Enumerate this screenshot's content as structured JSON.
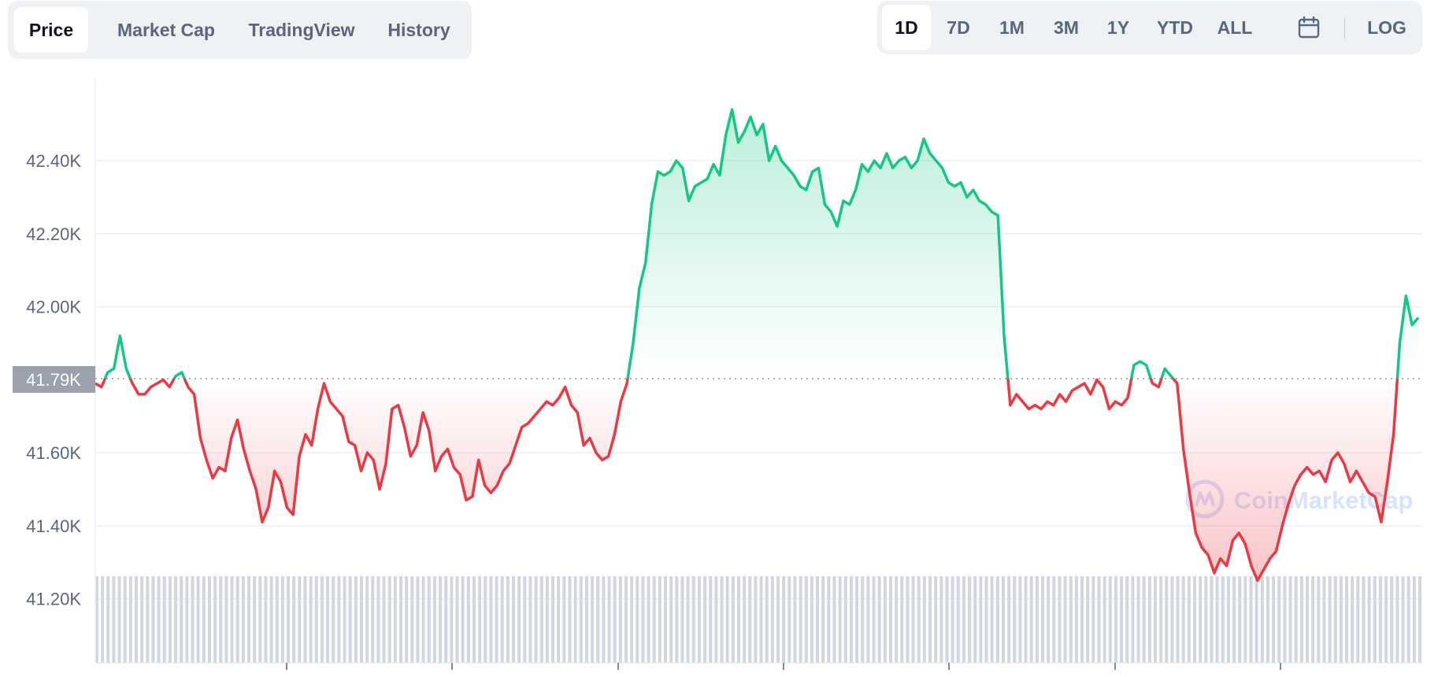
{
  "view_tabs": [
    {
      "label": "Price",
      "active": true
    },
    {
      "label": "Market Cap",
      "active": false
    },
    {
      "label": "TradingView",
      "active": false
    },
    {
      "label": "History",
      "active": false
    }
  ],
  "range_tabs": [
    {
      "label": "1D",
      "active": true
    },
    {
      "label": "7D",
      "active": false
    },
    {
      "label": "1M",
      "active": false
    },
    {
      "label": "3M",
      "active": false
    },
    {
      "label": "1Y",
      "active": false
    },
    {
      "label": "YTD",
      "active": false
    },
    {
      "label": "ALL",
      "active": false
    }
  ],
  "calendar_icon": "calendar-icon",
  "log_label": "LOG",
  "watermark": "CoinMarketCap",
  "colors": {
    "up": "#16c784",
    "down": "#ea3943",
    "grid": "#eceff3",
    "volume": "#cfd6e4",
    "reference_badge": "#9ba2ad"
  },
  "chart_data": {
    "type": "area",
    "title": "",
    "xlabel": "",
    "ylabel": "",
    "ylim": [
      41.0,
      42.6
    ],
    "y_ticks": [
      "42.40K",
      "42.20K",
      "42.00K",
      "41.60K",
      "41.40K",
      "41.20K"
    ],
    "y_tick_values": [
      42.4,
      42.2,
      42.0,
      41.6,
      41.4,
      41.2
    ],
    "reference_label": "41.79K",
    "reference_value": 41.79,
    "grid": true,
    "series": [
      {
        "values": [
          41.79,
          41.78,
          41.82,
          41.83,
          41.92,
          41.83,
          41.79,
          41.76,
          41.76,
          41.78,
          41.79,
          41.8,
          41.78,
          41.81,
          41.82,
          41.78,
          41.76,
          41.64,
          41.58,
          41.53,
          41.56,
          41.55,
          41.64,
          41.69,
          41.61,
          41.55,
          41.5,
          41.41,
          41.45,
          41.55,
          41.52,
          41.45,
          41.43,
          41.59,
          41.65,
          41.62,
          41.72,
          41.79,
          41.74,
          41.72,
          41.7,
          41.63,
          41.62,
          41.55,
          41.6,
          41.58,
          41.5,
          41.57,
          41.72,
          41.73,
          41.67,
          41.59,
          41.62,
          41.71,
          41.66,
          41.55,
          41.59,
          41.61,
          41.56,
          41.54,
          41.47,
          41.48,
          41.58,
          41.51,
          41.49,
          41.51,
          41.55,
          41.57,
          41.62,
          41.67,
          41.68,
          41.7,
          41.72,
          41.74,
          41.73,
          41.75,
          41.78,
          41.73,
          41.71,
          41.62,
          41.64,
          41.6,
          41.58,
          41.59,
          41.65,
          41.74,
          41.79,
          41.9,
          42.05,
          42.12,
          42.28,
          42.37,
          42.36,
          42.37,
          42.4,
          42.38,
          42.29,
          42.33,
          42.34,
          42.35,
          42.39,
          42.36,
          42.47,
          42.54,
          42.45,
          42.48,
          42.52,
          42.47,
          42.5,
          42.4,
          42.44,
          42.4,
          42.38,
          42.36,
          42.33,
          42.32,
          42.37,
          42.38,
          42.28,
          42.26,
          42.22,
          42.29,
          42.28,
          42.32,
          42.39,
          42.37,
          42.4,
          42.38,
          42.42,
          42.38,
          42.4,
          42.41,
          42.38,
          42.4,
          42.46,
          42.42,
          42.4,
          42.38,
          42.34,
          42.33,
          42.34,
          42.3,
          42.32,
          42.29,
          42.28,
          42.26,
          42.25,
          41.92,
          41.73,
          41.76,
          41.74,
          41.72,
          41.73,
          41.72,
          41.74,
          41.73,
          41.76,
          41.74,
          41.77,
          41.78,
          41.79,
          41.76,
          41.8,
          41.78,
          41.72,
          41.74,
          41.73,
          41.75,
          41.84,
          41.85,
          41.84,
          41.79,
          41.78,
          41.83,
          41.81,
          41.79,
          41.61,
          41.49,
          41.38,
          41.34,
          41.32,
          41.27,
          41.31,
          41.29,
          41.36,
          41.38,
          41.35,
          41.29,
          41.25,
          41.28,
          41.31,
          41.33,
          41.4,
          41.46,
          41.51,
          41.54,
          41.56,
          41.54,
          41.55,
          41.52,
          41.58,
          41.6,
          41.57,
          41.52,
          41.55,
          41.52,
          41.49,
          41.48,
          41.41,
          41.52,
          41.65,
          41.9,
          42.03,
          41.95,
          41.97
        ]
      }
    ],
    "volume": [
      0.5,
      0.5,
      0.5,
      0.5,
      0.5,
      0.5,
      0.5,
      0.5,
      0.5,
      0.5,
      0.5,
      0.5,
      0.5,
      0.5,
      0.5,
      0.5,
      0.5,
      0.5,
      0.5,
      0.5,
      0.5,
      0.5,
      0.5,
      0.5,
      0.5,
      0.5,
      0.5,
      0.5,
      0.5,
      0.5,
      0.5,
      0.5,
      0.5,
      0.5,
      0.5,
      0.5,
      0.5,
      0.5,
      0.5,
      0.5,
      0.5,
      0.5,
      0.5,
      0.5,
      0.5,
      0.5,
      0.5,
      0.5,
      0.5,
      0.5,
      0.5,
      0.5,
      0.5,
      0.5,
      0.5,
      0.5,
      0.5,
      0.5,
      0.5,
      0.5,
      0.5,
      0.5,
      0.5,
      0.5,
      0.5,
      0.5,
      0.5,
      0.5,
      0.5,
      0.5,
      0.5,
      0.5,
      0.5,
      0.5,
      0.5,
      0.5,
      0.5,
      0.5,
      0.5,
      0.5,
      0.5,
      0.5,
      0.5,
      0.5,
      0.5,
      0.5,
      0.5,
      0.5,
      0.5,
      0.5,
      0.5,
      0.5,
      0.5,
      0.5,
      0.5,
      0.5,
      0.5,
      0.5,
      0.5,
      0.5,
      0.5,
      0.5,
      0.5,
      0.5,
      0.5,
      0.5,
      0.5,
      0.5,
      0.5,
      0.5,
      0.5,
      0.5,
      0.5,
      0.5,
      0.5,
      0.5,
      0.5,
      0.5,
      0.5,
      0.5,
      0.5,
      0.5,
      0.5,
      0.5,
      0.5,
      0.5,
      0.5,
      0.5,
      0.5,
      0.5,
      0.5,
      0.5,
      0.5,
      0.5,
      0.5,
      0.5,
      0.5,
      0.5,
      0.5,
      0.5,
      0.5,
      0.5,
      0.5,
      0.5,
      0.5,
      0.5,
      0.5,
      0.5,
      0.5,
      0.5,
      0.5,
      0.5,
      0.5,
      0.5,
      0.5,
      0.5,
      0.5,
      0.5,
      0.5,
      0.5,
      0.5,
      0.5,
      0.5,
      0.5,
      0.5,
      0.5,
      0.5,
      0.5,
      0.5,
      0.5,
      0.5,
      0.5,
      0.5,
      0.5,
      0.5,
      0.5,
      0.5,
      0.5,
      0.5,
      0.5,
      0.5,
      0.5,
      0.5,
      0.5,
      0.5,
      0.5,
      0.5,
      0.5,
      0.5,
      0.5,
      0.5,
      0.5,
      0.5,
      0.5,
      0.5,
      0.5,
      0.5,
      0.5,
      0.5,
      0.5,
      0.5,
      0.5,
      0.5,
      0.5,
      0.5,
      0.5,
      0.5,
      0.5,
      0.5,
      0.5,
      0.5,
      0.5,
      0.5,
      0.5,
      0.5,
      0.5,
      0.5,
      0.5,
      0.5,
      0.5,
      0.5,
      0.5,
      0.5,
      0.5,
      0.5,
      0.5,
      0.5,
      0.5,
      0.5,
      0.5,
      0.5,
      0.5,
      0.5,
      0.5,
      0.5,
      0.5
    ]
  }
}
